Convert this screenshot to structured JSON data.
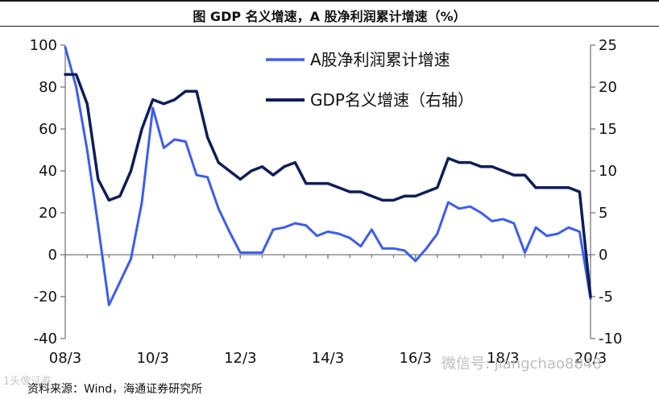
{
  "header": {
    "title": "图  GDP 名义增速，A 股净利润累计增速（%）"
  },
  "footer": {
    "source": "资料来源：Wind，海通证券研究所"
  },
  "watermarks": {
    "left": "1头像证券",
    "right": "微信号: jiangchao8848"
  },
  "chart_data": {
    "type": "line",
    "title": "",
    "xlabel": "",
    "ylabel": "",
    "x_ticks": [
      "08/3",
      "10/3",
      "12/3",
      "14/3",
      "16/3",
      "18/3",
      "20/3"
    ],
    "left_axis": {
      "ylim": [
        -40,
        100
      ],
      "ticks": [
        100,
        80,
        60,
        40,
        20,
        0,
        -20,
        -40
      ]
    },
    "right_axis": {
      "ylim": [
        -10,
        25
      ],
      "ticks": [
        25,
        20,
        15,
        10,
        5,
        0,
        -5,
        -10
      ]
    },
    "grid": false,
    "legend_position": "top-right",
    "series": [
      {
        "name": "A股净利润累计增速",
        "axis": "left",
        "color": "#3d5cf0",
        "x": [
          2008.25,
          2008.5,
          2008.75,
          2009.0,
          2009.25,
          2009.5,
          2009.75,
          2010.0,
          2010.25,
          2010.5,
          2010.75,
          2011.0,
          2011.25,
          2011.5,
          2011.75,
          2012.0,
          2012.25,
          2012.5,
          2012.75,
          2013.0,
          2013.25,
          2013.5,
          2013.75,
          2014.0,
          2014.25,
          2014.5,
          2014.75,
          2015.0,
          2015.25,
          2015.5,
          2015.75,
          2016.0,
          2016.25,
          2016.5,
          2016.75,
          2017.0,
          2017.25,
          2017.5,
          2017.75,
          2018.0,
          2018.25,
          2018.5,
          2018.75,
          2019.0,
          2019.25,
          2019.5,
          2019.75,
          2020.0,
          2020.25
        ],
        "y": [
          99,
          80,
          50,
          14,
          -24,
          -13,
          -2,
          25,
          70,
          51,
          55,
          54,
          38,
          37,
          22,
          11,
          1,
          1,
          1,
          12,
          13,
          15,
          14,
          9,
          11,
          10,
          8,
          4,
          12,
          3,
          3,
          2,
          -3,
          3,
          10,
          25,
          22,
          23,
          20,
          16,
          17,
          15,
          1,
          13,
          9,
          10,
          13,
          11,
          -21
        ]
      },
      {
        "name": "GDP名义增速（右轴）",
        "axis": "right",
        "color": "#0f1e5a",
        "x": [
          2008.25,
          2008.5,
          2008.75,
          2009.0,
          2009.25,
          2009.5,
          2009.75,
          2010.0,
          2010.25,
          2010.5,
          2010.75,
          2011.0,
          2011.25,
          2011.5,
          2011.75,
          2012.0,
          2012.25,
          2012.5,
          2012.75,
          2013.0,
          2013.25,
          2013.5,
          2013.75,
          2014.0,
          2014.25,
          2014.5,
          2014.75,
          2015.0,
          2015.25,
          2015.5,
          2015.75,
          2016.0,
          2016.25,
          2016.5,
          2016.75,
          2017.0,
          2017.25,
          2017.5,
          2017.75,
          2018.0,
          2018.25,
          2018.5,
          2018.75,
          2019.0,
          2019.25,
          2019.5,
          2019.75,
          2020.0,
          2020.25
        ],
        "y": [
          21.5,
          21.5,
          18,
          9,
          6.5,
          7,
          10,
          15,
          18.5,
          18,
          18.5,
          19.5,
          19.5,
          14,
          11,
          10,
          9,
          10,
          10.5,
          9.5,
          10.5,
          11,
          8.5,
          8.5,
          8.5,
          8,
          7.5,
          7.5,
          7,
          6.5,
          6.5,
          7,
          7,
          7.5,
          8,
          11.5,
          11,
          11,
          10.5,
          10.5,
          10,
          9.5,
          9.5,
          8,
          8,
          8,
          8,
          7.5,
          -5
        ]
      }
    ]
  }
}
